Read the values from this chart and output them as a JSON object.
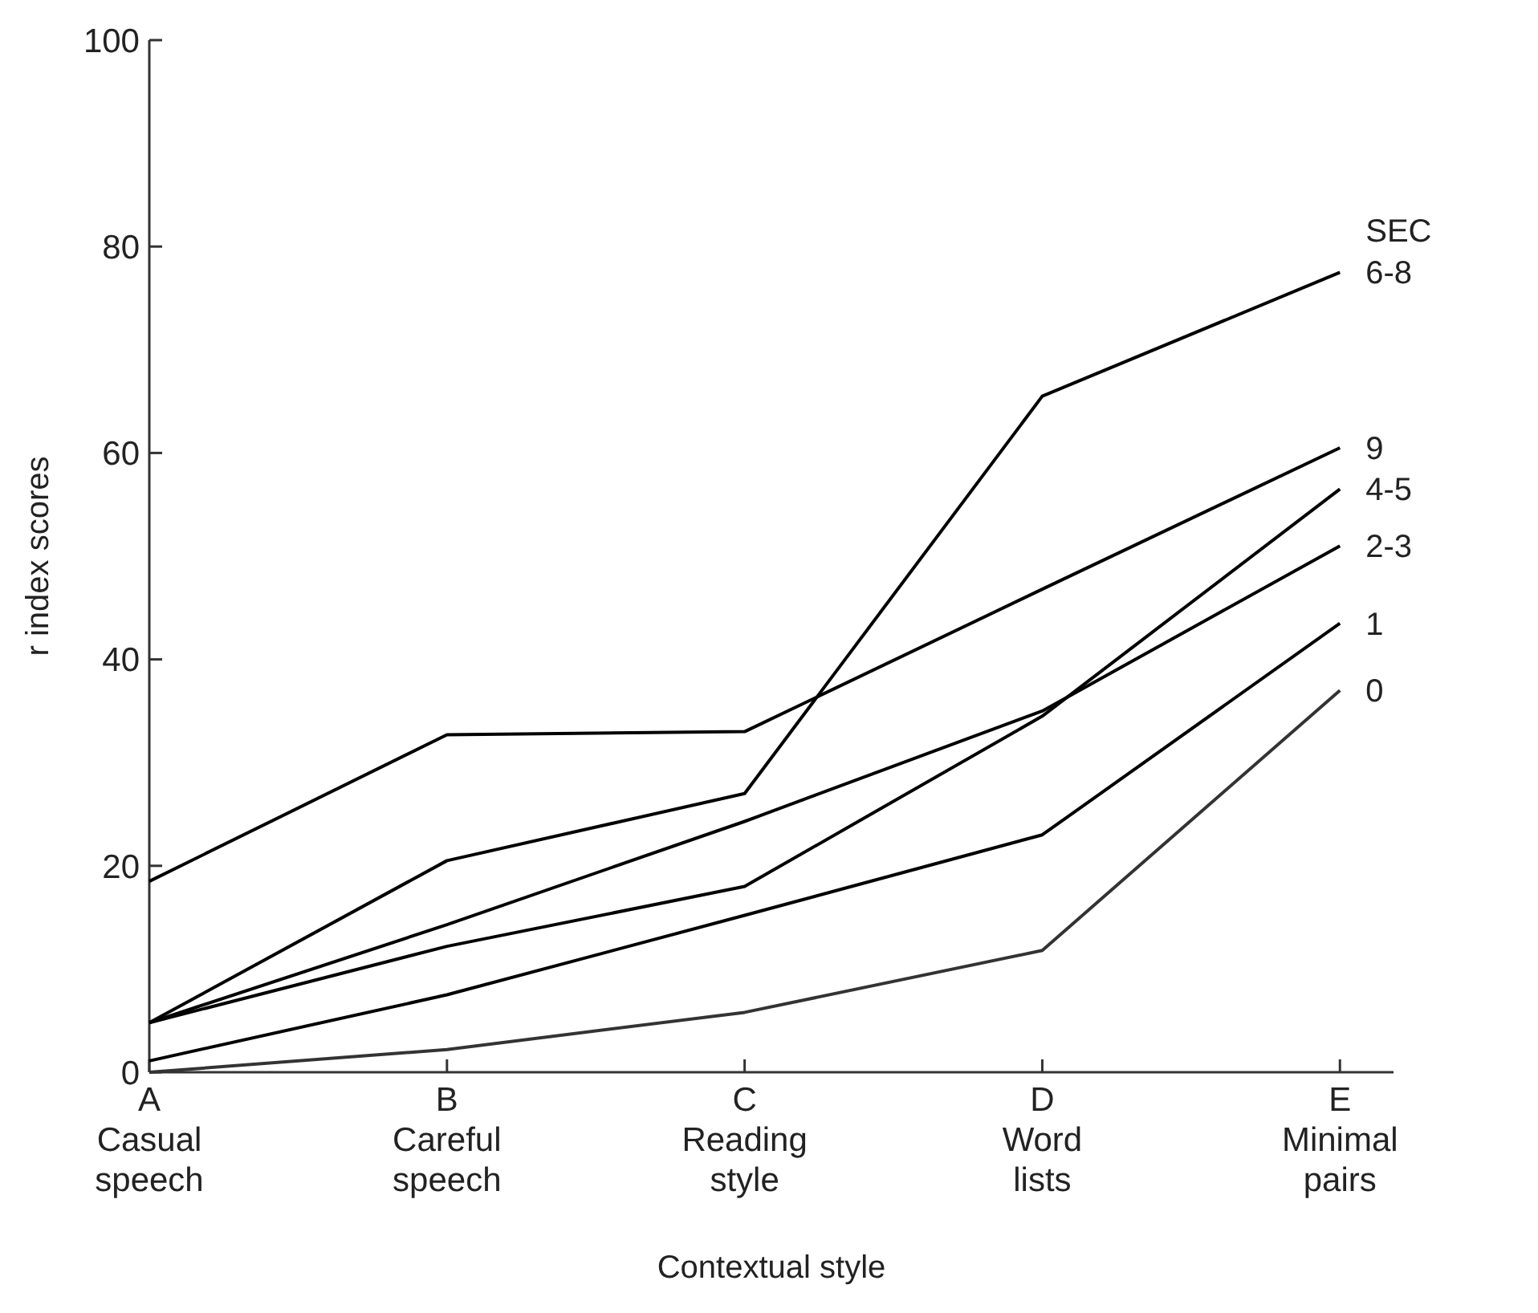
{
  "chart_data": {
    "type": "line",
    "xlabel": "Contextual style",
    "ylabel": "r index scores",
    "legend_title": "SEC",
    "ylim": [
      0,
      100
    ],
    "categories": [
      "A\nCasual\nspeech",
      "B\nCareful\nspeech",
      "C\nReading\nstyle",
      "D\nWord\nlists",
      "E\nMinimal\npairs"
    ],
    "yticks": [
      0,
      20,
      40,
      60,
      80,
      100
    ],
    "grid": false,
    "marker": "none",
    "line_style": "solid",
    "series": [
      {
        "name": "6-8",
        "color": "#000000",
        "values": [
          4.8,
          20.5,
          27,
          65.5,
          77.5
        ]
      },
      {
        "name": "9",
        "color": "#000000",
        "values": [
          18.5,
          32.7,
          33,
          46.8,
          60.5
        ]
      },
      {
        "name": "4-5",
        "color": "#000000",
        "values": [
          4.8,
          12.2,
          18,
          34.5,
          56.5
        ]
      },
      {
        "name": "2-3",
        "color": "#000000",
        "values": [
          4.8,
          14.3,
          24.3,
          35,
          51
        ]
      },
      {
        "name": "1",
        "color": "#000000",
        "values": [
          1.1,
          7.5,
          15.2,
          23,
          43.5
        ]
      },
      {
        "name": "0",
        "color": "#333333",
        "values": [
          0,
          2.2,
          5.8,
          11.8,
          37
        ]
      }
    ]
  }
}
